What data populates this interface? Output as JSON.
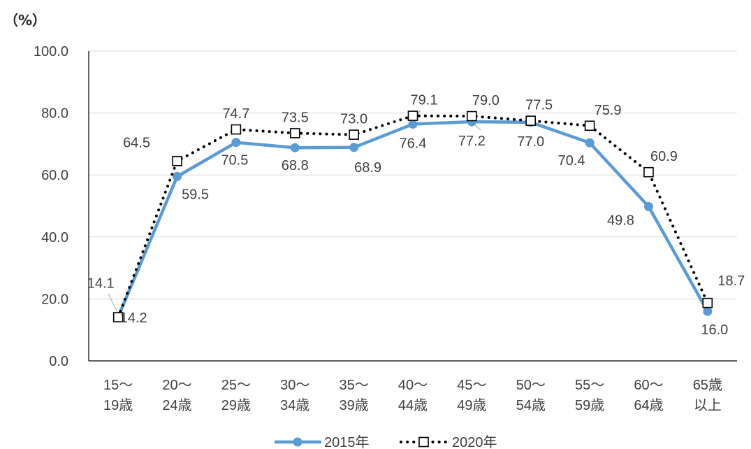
{
  "chart_data": {
    "type": "line",
    "unit_label": "（%）",
    "categories": [
      [
        "15～",
        "19歳"
      ],
      [
        "20～",
        "24歳"
      ],
      [
        "25～",
        "29歳"
      ],
      [
        "30～",
        "34歳"
      ],
      [
        "35～",
        "39歳"
      ],
      [
        "40～",
        "44歳"
      ],
      [
        "45～",
        "49歳"
      ],
      [
        "50～",
        "54歳"
      ],
      [
        "55～",
        "59歳"
      ],
      [
        "60～",
        "64歳"
      ],
      [
        "65歳",
        "以上"
      ]
    ],
    "series": [
      {
        "name": "2015年",
        "color": "#5b9bd5",
        "style": "solid",
        "marker": "circle",
        "values": [
          14.2,
          59.5,
          70.5,
          68.8,
          68.9,
          76.4,
          77.2,
          77.0,
          70.4,
          49.8,
          16.0
        ],
        "labels": [
          "14.2",
          "59.5",
          "70.5",
          "68.8",
          "68.9",
          "76.4",
          "77.2",
          "77.0",
          "70.4",
          "49.8",
          "16.0"
        ]
      },
      {
        "name": "2020年",
        "color": "#000000",
        "style": "dotted",
        "marker": "square",
        "values": [
          14.1,
          64.5,
          74.7,
          73.5,
          73.0,
          79.1,
          79.0,
          77.5,
          75.9,
          60.9,
          18.7
        ],
        "labels": [
          "14.1",
          "64.5",
          "74.7",
          "73.5",
          "73.0",
          "79.1",
          "79.0",
          "77.5",
          "75.9",
          "60.9",
          "18.7"
        ]
      }
    ],
    "ylim": [
      0,
      100
    ],
    "yticks": [
      "0.0",
      "20.0",
      "40.0",
      "60.0",
      "80.0",
      "100.0"
    ],
    "grid": true,
    "legend": "bottom"
  }
}
